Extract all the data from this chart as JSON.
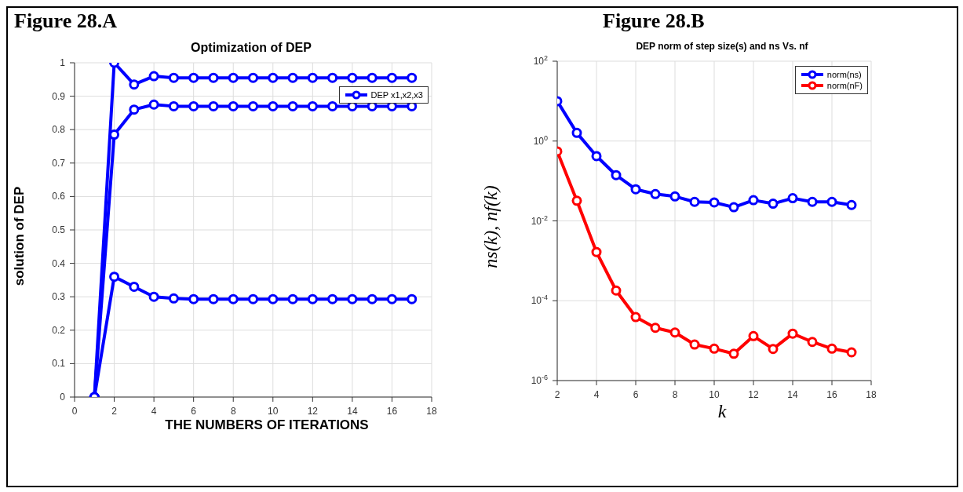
{
  "chart_data": [
    {
      "type": "line",
      "annotations": [
        "Figure 28.A"
      ],
      "title": "Optimization of DEP",
      "xlabel": "THE NUMBERS OF ITERATIONS",
      "ylabel": "solution of DEP",
      "x": [
        1,
        2,
        3,
        4,
        5,
        6,
        7,
        8,
        9,
        10,
        11,
        12,
        13,
        14,
        15,
        16,
        17
      ],
      "series": [
        {
          "name": "DEP x1,x2,x3",
          "color": "#0000ff",
          "values": [
            0,
            1.0,
            0.935,
            0.96,
            0.955,
            0.955,
            0.955,
            0.955,
            0.955,
            0.955,
            0.955,
            0.955,
            0.955,
            0.955,
            0.955,
            0.955,
            0.955
          ]
        },
        {
          "color": "#0000ff",
          "values": [
            0,
            0.785,
            0.86,
            0.875,
            0.87,
            0.87,
            0.87,
            0.87,
            0.87,
            0.87,
            0.87,
            0.87,
            0.87,
            0.87,
            0.87,
            0.87,
            0.87
          ]
        },
        {
          "color": "#0000ff",
          "values": [
            0,
            0.36,
            0.33,
            0.3,
            0.295,
            0.293,
            0.293,
            0.293,
            0.293,
            0.293,
            0.293,
            0.293,
            0.293,
            0.293,
            0.293,
            0.293,
            0.293
          ]
        }
      ],
      "xlim": [
        0,
        18
      ],
      "xticks": [
        0,
        2,
        4,
        6,
        8,
        10,
        12,
        14,
        16,
        18
      ],
      "ylim": [
        0,
        1
      ],
      "yticks": [
        0,
        0.1,
        0.2,
        0.3,
        0.4,
        0.5,
        0.6,
        0.7,
        0.8,
        0.9,
        1
      ],
      "grid": true,
      "legend": "top right",
      "marker": "circle",
      "line_style": "solid"
    },
    {
      "type": "line",
      "annotations": [
        "Figure 28.B"
      ],
      "title": "DEP norm of step size(s) and ns Vs. nf",
      "xlabel": "k",
      "ylabel": "ns(k), nf(k)",
      "x": [
        2,
        3,
        4,
        5,
        6,
        7,
        8,
        9,
        10,
        11,
        12,
        13,
        14,
        15,
        16,
        17
      ],
      "series": [
        {
          "name": "norm(ns)",
          "color": "#0000ff",
          "values": [
            10,
            1.6,
            0.42,
            0.14,
            0.062,
            0.047,
            0.041,
            0.03,
            0.029,
            0.022,
            0.033,
            0.027,
            0.037,
            0.03,
            0.03,
            0.025
          ]
        },
        {
          "name": "norm(nF)",
          "color": "#ff0000",
          "values": [
            0.55,
            0.032,
            0.00166,
            0.00018,
            3.9e-05,
            2.1e-05,
            1.6e-05,
            8e-06,
            6.3e-06,
            4.7e-06,
            1.3e-05,
            6.2e-06,
            1.5e-05,
            9.3e-06,
            6.3e-06,
            5.1e-06
          ]
        }
      ],
      "xlim": [
        2,
        18
      ],
      "xticks": [
        2,
        4,
        6,
        8,
        10,
        12,
        14,
        16,
        18
      ],
      "ylim": [
        1e-06,
        100
      ],
      "yticks": [
        {
          "value": 1e-06,
          "label": "10$^{-6}$"
        },
        {
          "value": 0.0001,
          "label": "10$^{-4}$"
        },
        {
          "value": 0.01,
          "label": "10$^{-2}$"
        },
        {
          "value": 1,
          "label": "10$^{0}$"
        },
        {
          "value": 100,
          "label": "10$^{2}$"
        }
      ],
      "log": "y",
      "grid": true,
      "legend": "top right",
      "marker": "circle",
      "line_style": "solid"
    }
  ]
}
